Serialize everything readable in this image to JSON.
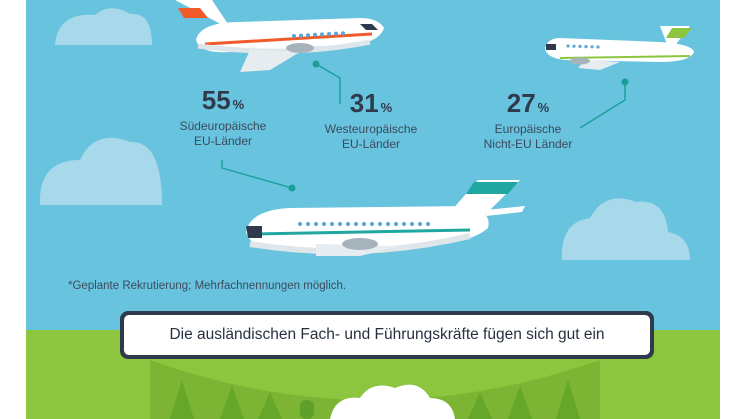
{
  "chart_data": {
    "type": "infographic",
    "title": "",
    "series": [
      {
        "name": "Südeuropäische EU-Länder",
        "value": 55,
        "unit": "%"
      },
      {
        "name": "Westeuropäische EU-Länder",
        "value": 31,
        "unit": "%"
      },
      {
        "name": "Europäische Nicht-EU Länder",
        "value": 27,
        "unit": "%"
      }
    ]
  },
  "stats": {
    "south": {
      "value": "55",
      "unit": "%",
      "line1": "Südeuropäische",
      "line2": "EU-Länder"
    },
    "west": {
      "value": "31",
      "unit": "%",
      "line1": "Westeuropäische",
      "line2": "EU-Länder"
    },
    "nonEU": {
      "value": "27",
      "unit": "%",
      "line1": "Europäische",
      "line2": "Nicht-EU Länder"
    }
  },
  "footnote": "*Geplante Rekrutierung; Mehrfachnennungen möglich.",
  "banner": "Die ausländischen Fach- und Führungskräfte fügen sich gut ein",
  "colors": {
    "sky": "#68c3df",
    "grass": "#8cc63f",
    "cloud": "#a8d9ea",
    "connector": "#1a9e96",
    "stripe_orange": "#f15a29",
    "stripe_green": "#8cc63f",
    "stripe_teal": "#1fa7a0"
  }
}
